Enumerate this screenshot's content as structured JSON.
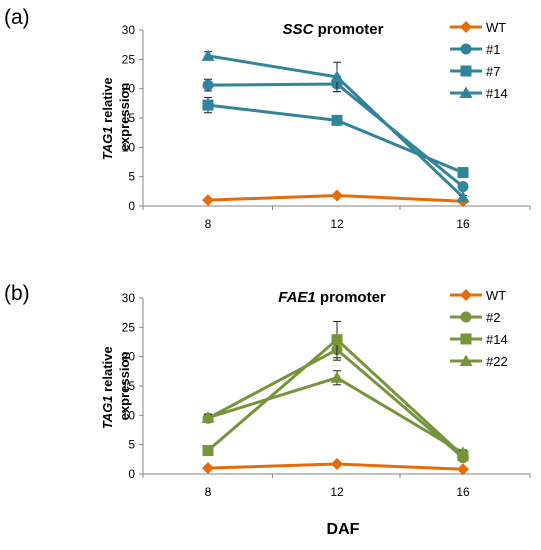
{
  "figure": {
    "xlabel": "DAF"
  },
  "chart_data": [
    {
      "type": "line",
      "panel_label": "(a)",
      "title_italic": "SSC",
      "title_rest": " promoter",
      "ylabel_line1_italic": "TAG1",
      "ylabel_line1_rest": " relative",
      "ylabel_line2": "expression",
      "categories": [
        "8",
        "12",
        "16"
      ],
      "x": [
        8,
        12,
        16
      ],
      "ylim": [
        0,
        30
      ],
      "yticks": [
        0,
        5,
        10,
        15,
        20,
        25,
        30
      ],
      "legend_position": "top-right",
      "series": [
        {
          "name": "WT",
          "color": "#E46C0A",
          "marker": "diamond",
          "values": [
            1.0,
            1.8,
            0.8
          ],
          "errors": [
            0.1,
            0.2,
            0.1
          ]
        },
        {
          "name": "#1",
          "color": "#31849B",
          "marker": "circle",
          "values": [
            20.6,
            20.8,
            3.3
          ],
          "errors": [
            1.0,
            1.3,
            0.6
          ]
        },
        {
          "name": "#7",
          "color": "#31849B",
          "marker": "square",
          "values": [
            17.2,
            14.6,
            5.7
          ],
          "errors": [
            1.3,
            0.8,
            0.7
          ]
        },
        {
          "name": "#14",
          "color": "#31849B",
          "marker": "triangle",
          "values": [
            25.6,
            22.0,
            1.5
          ],
          "errors": [
            0.7,
            2.5,
            0.3
          ]
        }
      ]
    },
    {
      "type": "line",
      "panel_label": "(b)",
      "title_italic": "FAE1",
      "title_rest": " promoter",
      "ylabel_line1_italic": "TAG1",
      "ylabel_line1_rest": " relative",
      "ylabel_line2": "expression",
      "categories": [
        "8",
        "12",
        "16"
      ],
      "x": [
        8,
        12,
        16
      ],
      "ylim": [
        0,
        30
      ],
      "yticks": [
        0,
        5,
        10,
        15,
        20,
        25,
        30
      ],
      "legend_position": "top-right",
      "series": [
        {
          "name": "WT",
          "color": "#E46C0A",
          "marker": "diamond",
          "values": [
            1.0,
            1.7,
            0.8
          ],
          "errors": [
            0.1,
            0.2,
            0.1
          ]
        },
        {
          "name": "#2",
          "color": "#77933C",
          "marker": "circle",
          "values": [
            9.5,
            21.2,
            2.8
          ],
          "errors": [
            0.7,
            1.8,
            0.5
          ]
        },
        {
          "name": "#14",
          "color": "#77933C",
          "marker": "square",
          "values": [
            4.0,
            22.9,
            3.1
          ],
          "errors": [
            0.4,
            3.1,
            0.5
          ]
        },
        {
          "name": "#22",
          "color": "#77933C",
          "marker": "triangle",
          "values": [
            9.6,
            16.4,
            3.6
          ],
          "errors": [
            0.6,
            1.2,
            0.5
          ]
        }
      ]
    }
  ]
}
